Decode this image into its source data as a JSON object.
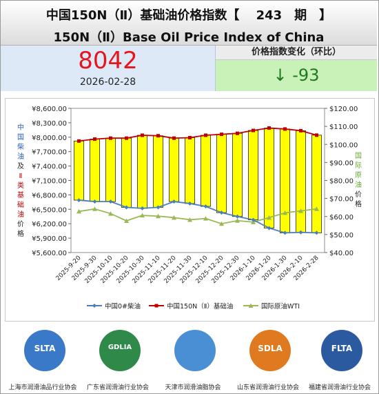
{
  "header": {
    "title_cn": "中国150N（Ⅱ）基础油价格指数【　 243　期　】",
    "title_en": "150N（Ⅱ）Base Oil Price Index of China"
  },
  "index": {
    "value": "8042",
    "date": "2026-02-28"
  },
  "change": {
    "label": "价格指数变化（环比）",
    "value": "↓ -93"
  },
  "chart_data": {
    "type": "bar",
    "categories": [
      "2025-9-20",
      "2025-9-30",
      "2025-10-10",
      "2025-10-20",
      "2025-10-30",
      "2025-11-10",
      "2025-11-20",
      "2025-11-30",
      "2025-12-10",
      "2025-12-20",
      "2025-12-30",
      "2026-1-10",
      "2026-1-20",
      "2026-1-30",
      "2026-2-10",
      "2026-2-28"
    ],
    "left_axis": {
      "label_chars": [
        "中",
        "国",
        "柴",
        "油",
        "及",
        "Ⅱ",
        "类",
        "基",
        "础",
        "油",
        "价",
        "格"
      ],
      "ticks": [
        "¥8,600.00",
        "¥8,300.00",
        "¥8,000.00",
        "¥7,700.00",
        "¥7,400.00",
        "¥7,100.00",
        "¥6,800.00",
        "¥6,500.00",
        "¥6,200.00",
        "¥5,900.00",
        "¥5,600.00"
      ],
      "ylim": [
        5600,
        8600
      ]
    },
    "right_axis": {
      "label_chars": [
        "国",
        "际",
        "原",
        "油",
        "价",
        "格"
      ],
      "ticks": [
        "$120.00",
        "$110.00",
        "$100.00",
        "$90.00",
        "$80.00",
        "$70.00",
        "$60.00",
        "$50.00",
        "$40.00"
      ],
      "ylim": [
        40,
        120
      ]
    },
    "series": [
      {
        "name": "中国0#柴油",
        "color": "#4a7ebb",
        "axis": "left",
        "values": [
          6690,
          6660,
          6660,
          6540,
          6520,
          6540,
          6660,
          6620,
          6560,
          6430,
          6350,
          6280,
          6110,
          6010,
          6020,
          6010
        ]
      },
      {
        "name": "中国150N（Ⅱ）基础油",
        "color": "#c00000",
        "axis": "left",
        "values": [
          7920,
          7960,
          7980,
          7980,
          8040,
          8030,
          7980,
          7990,
          8040,
          8060,
          8080,
          8140,
          8190,
          8170,
          8135,
          8042
        ]
      },
      {
        "name": "国际原油WTI",
        "color": "#98b954",
        "axis": "right",
        "values": [
          62.8,
          64.2,
          61.6,
          57.6,
          60.6,
          60.2,
          59.4,
          58.2,
          58.9,
          56.0,
          57.7,
          56.9,
          59.4,
          62.0,
          63.1,
          64.2
        ]
      }
    ],
    "band_color": "#ffff00"
  },
  "logos": [
    {
      "abbr": "SLTA",
      "caption": "上海市润滑油品行业协会",
      "color": "#3a78c8"
    },
    {
      "abbr": "GDLIA",
      "caption": "广东省润滑油行业协会",
      "color": "#2f8a4a"
    },
    {
      "abbr": "",
      "caption": "天津市润滑油脂协会",
      "color": "#4a8fd4"
    },
    {
      "abbr": "SDLA",
      "caption": "山东省润滑油行业协会",
      "color": "#e07a20"
    },
    {
      "abbr": "FLTA",
      "caption": "福建省润滑油行业协会",
      "color": "#2c5aa0"
    }
  ]
}
